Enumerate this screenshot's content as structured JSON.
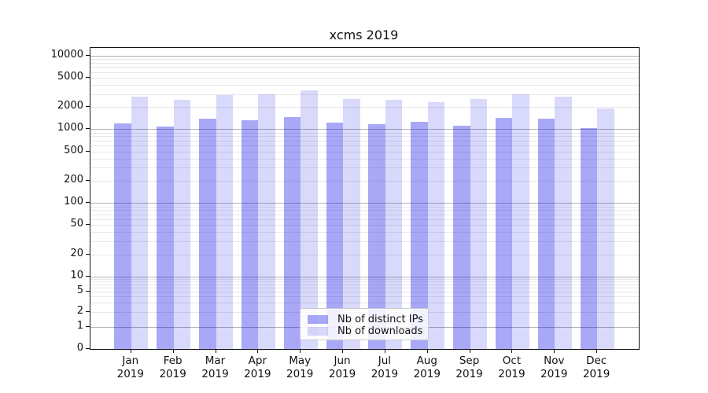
{
  "chart_data": {
    "type": "bar",
    "title": "xcms 2019",
    "yscale": "symlog",
    "grid": true,
    "legend_position": "lower center",
    "year_label": "2019",
    "categories": [
      "Jan",
      "Feb",
      "Mar",
      "Apr",
      "May",
      "Jun",
      "Jul",
      "Aug",
      "Sep",
      "Oct",
      "Nov",
      "Dec"
    ],
    "series": [
      {
        "name": "Nb of distinct IPs",
        "color": "rgba(0,0,230,0.34)",
        "values": [
          1210,
          1080,
          1390,
          1320,
          1450,
          1220,
          1180,
          1260,
          1120,
          1430,
          1380,
          1030
        ]
      },
      {
        "name": "Nb of downloads",
        "color": "rgba(0,0,230,0.15)",
        "values": [
          2770,
          2530,
          2900,
          3010,
          3350,
          2580,
          2530,
          2330,
          2570,
          3010,
          2790,
          1930
        ]
      }
    ],
    "ytick_labels": [
      10000,
      5000,
      2000,
      1000,
      500,
      200,
      100,
      50,
      20,
      10,
      5,
      2,
      1,
      0
    ],
    "ylim": [
      0,
      12500
    ],
    "colors": {
      "major_grid": "#b3b3b3",
      "minor_grid": "#e8e8e8",
      "spine": "#111111",
      "background": "#ffffff"
    }
  }
}
